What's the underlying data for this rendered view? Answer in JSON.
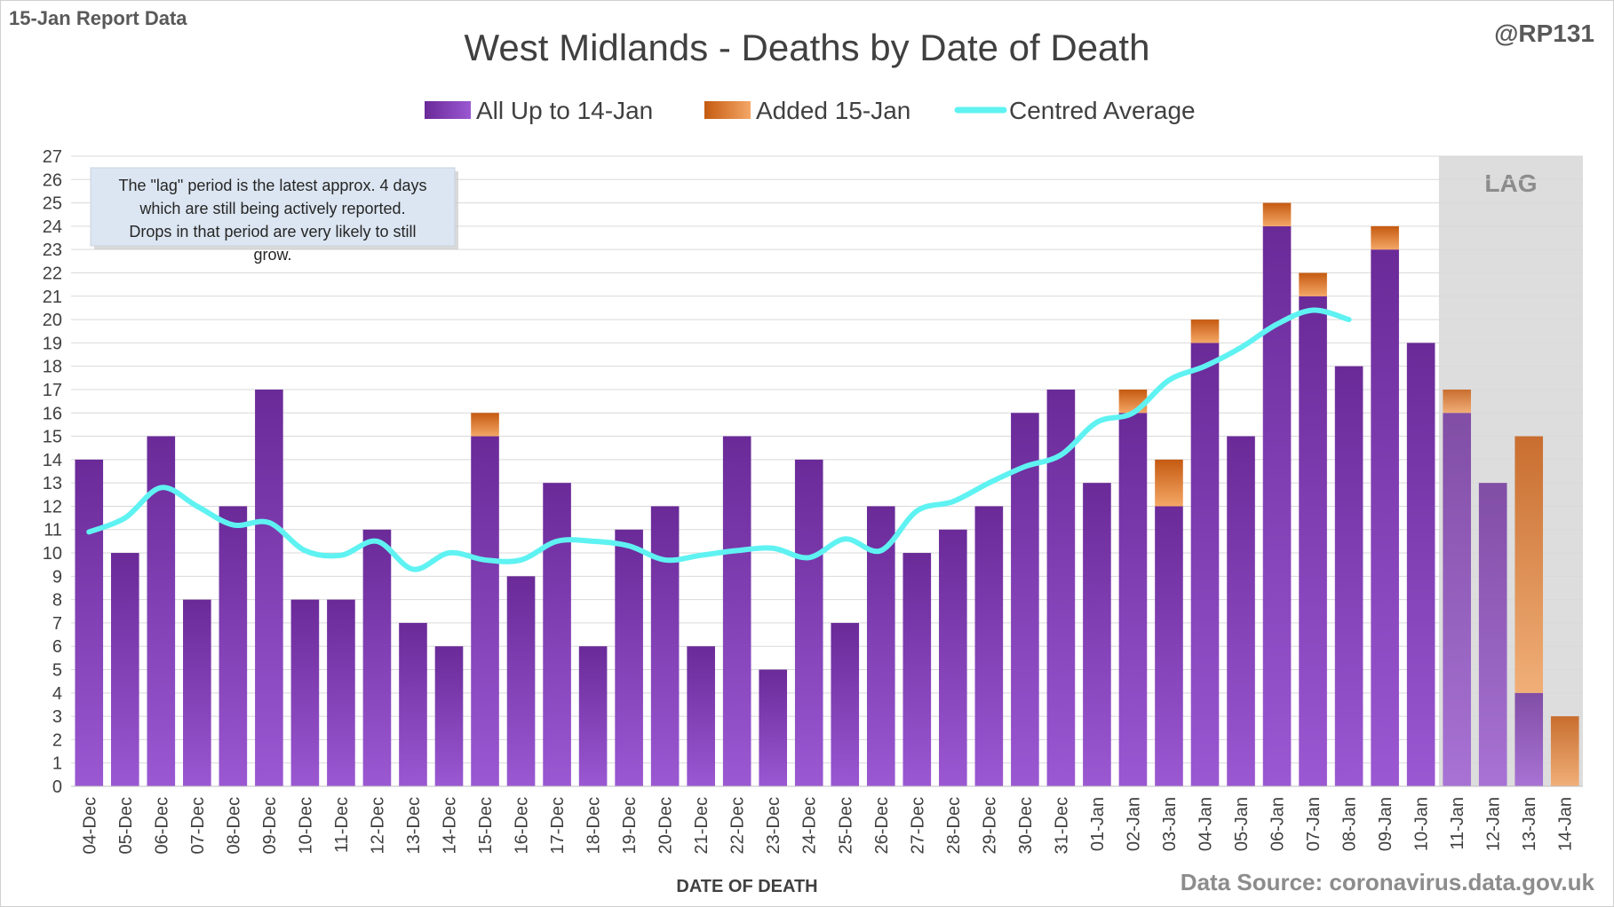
{
  "header": {
    "report_label": "15-Jan Report Data",
    "handle": "@RP131",
    "source": "Data Source: coronavirus.data.gov.uk"
  },
  "chart_data": {
    "type": "bar",
    "stacked": true,
    "title": "West Midlands - Deaths by Date of Death",
    "xlabel": "DATE OF DEATH",
    "ylabel": "",
    "ylim": [
      0,
      27
    ],
    "yticks": [
      0,
      1,
      2,
      3,
      4,
      5,
      6,
      7,
      8,
      9,
      10,
      11,
      12,
      13,
      14,
      15,
      16,
      17,
      18,
      19,
      20,
      21,
      22,
      23,
      24,
      25,
      26,
      27
    ],
    "grid": true,
    "legend_position": "top",
    "categories": [
      "04-Dec",
      "05-Dec",
      "06-Dec",
      "07-Dec",
      "08-Dec",
      "09-Dec",
      "10-Dec",
      "11-Dec",
      "12-Dec",
      "13-Dec",
      "14-Dec",
      "15-Dec",
      "16-Dec",
      "17-Dec",
      "18-Dec",
      "19-Dec",
      "20-Dec",
      "21-Dec",
      "22-Dec",
      "23-Dec",
      "24-Dec",
      "25-Dec",
      "26-Dec",
      "27-Dec",
      "28-Dec",
      "29-Dec",
      "30-Dec",
      "31-Dec",
      "01-Jan",
      "02-Jan",
      "03-Jan",
      "04-Jan",
      "05-Jan",
      "06-Jan",
      "07-Jan",
      "08-Jan",
      "09-Jan",
      "10-Jan",
      "11-Jan",
      "12-Jan",
      "13-Jan",
      "14-Jan"
    ],
    "series": [
      {
        "name": "All Up to 14-Jan",
        "type": "bar",
        "color": "#7030a0",
        "values": [
          14,
          10,
          15,
          8,
          12,
          17,
          8,
          8,
          11,
          7,
          6,
          15,
          9,
          13,
          6,
          11,
          12,
          6,
          15,
          5,
          14,
          7,
          12,
          10,
          11,
          12,
          16,
          17,
          13,
          16,
          12,
          19,
          15,
          24,
          21,
          18,
          23,
          19,
          16,
          13,
          4,
          0
        ]
      },
      {
        "name": "Added 15-Jan",
        "type": "bar",
        "color": "#e46c0a",
        "values": [
          0,
          0,
          0,
          0,
          0,
          0,
          0,
          0,
          0,
          0,
          0,
          1,
          0,
          0,
          0,
          0,
          0,
          0,
          0,
          0,
          0,
          0,
          0,
          0,
          0,
          0,
          0,
          0,
          0,
          1,
          2,
          1,
          0,
          1,
          1,
          0,
          1,
          0,
          1,
          0,
          11,
          3
        ]
      },
      {
        "name": "Centred Average",
        "type": "line",
        "color": "#5ff2f2",
        "values": [
          10.9,
          11.5,
          12.8,
          12.0,
          11.2,
          11.3,
          10.1,
          9.9,
          10.5,
          9.3,
          10.0,
          9.7,
          9.7,
          10.5,
          10.5,
          10.3,
          9.7,
          9.9,
          10.1,
          10.2,
          9.8,
          10.6,
          10.1,
          11.8,
          12.2,
          13.0,
          13.7,
          14.2,
          15.6,
          16.0,
          17.4,
          18.0,
          18.8,
          19.8,
          20.4,
          20.0,
          null,
          null,
          null,
          null,
          null,
          null
        ]
      }
    ],
    "lag": {
      "label": "LAG",
      "start_category": "11-Jan",
      "end_category": "14-Jan"
    },
    "annotation": "The \"lag\" period is the latest approx. 4 days which are still being actively reported.  Drops in that period are very likely to still grow."
  }
}
